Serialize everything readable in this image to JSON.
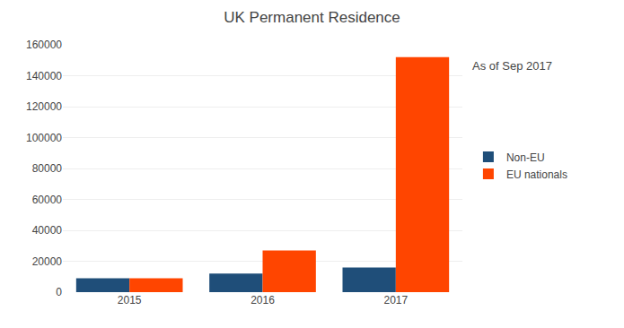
{
  "chart_data": {
    "type": "bar",
    "title": "UK Permanent Residence",
    "annotation": "As of Sep 2017",
    "categories": [
      "2015",
      "2016",
      "2017"
    ],
    "series": [
      {
        "name": "Non-EU",
        "color": "#1F4E79",
        "values": [
          9000,
          12000,
          16000
        ]
      },
      {
        "name": "EU nationals",
        "color": "#FF4500",
        "values": [
          9000,
          27000,
          152000
        ]
      }
    ],
    "ylim": [
      0,
      160000
    ],
    "yticks": [
      0,
      20000,
      40000,
      60000,
      80000,
      100000,
      120000,
      140000,
      160000
    ],
    "grid": true,
    "legend": "right"
  }
}
